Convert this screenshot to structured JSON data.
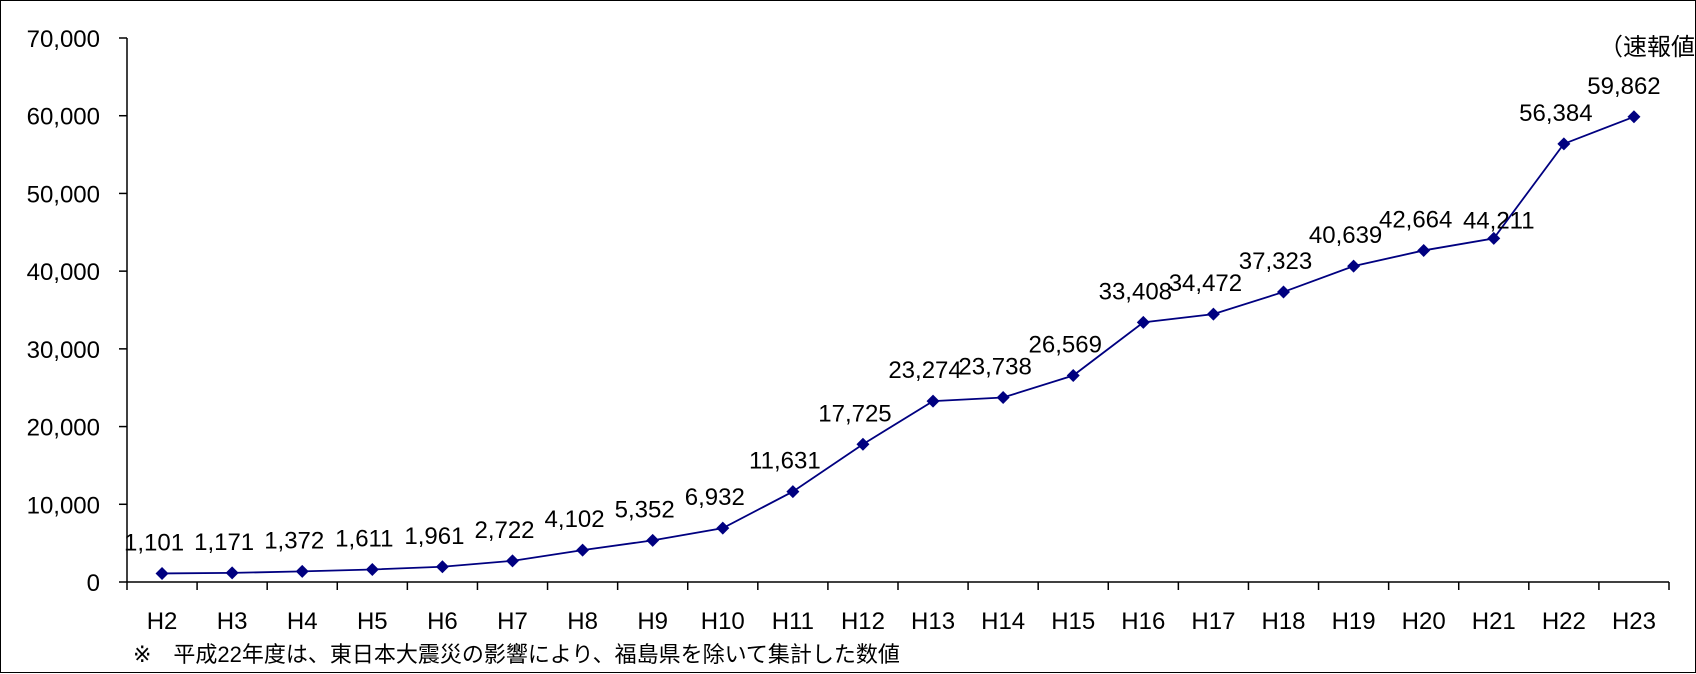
{
  "chart_data": {
    "type": "line",
    "categories": [
      "H2",
      "H3",
      "H4",
      "H5",
      "H6",
      "H7",
      "H8",
      "H9",
      "H10",
      "H11",
      "H12",
      "H13",
      "H14",
      "H15",
      "H16",
      "H17",
      "H18",
      "H19",
      "H20",
      "H21",
      "H22",
      "H23"
    ],
    "values": [
      1101,
      1171,
      1372,
      1611,
      1961,
      2722,
      4102,
      5352,
      6932,
      11631,
      17725,
      23274,
      23738,
      26569,
      33408,
      34472,
      37323,
      40639,
      42664,
      44211,
      56384,
      59862
    ],
    "data_labels": [
      "1,101",
      "1,171",
      "1,372",
      "1,611",
      "1,961",
      "2,722",
      "4,102",
      "5,352",
      "6,932",
      "11,631",
      "17,725",
      "23,274",
      "23,738",
      "26,569",
      "33,408",
      "34,472",
      "37,323",
      "40,639",
      "42,664",
      "44,211",
      "56,384",
      "59,862"
    ],
    "y_ticks": [
      0,
      10000,
      20000,
      30000,
      40000,
      50000,
      60000,
      70000
    ],
    "y_tick_labels": [
      "0",
      "10,000",
      "20,000",
      "30,000",
      "40,000",
      "50,000",
      "60,000",
      "70,000"
    ],
    "ylim": [
      0,
      70000
    ],
    "grid": false,
    "legend": "none",
    "annotation": "（速報値）",
    "note": "※　平成22年度は、東日本大震災の影響により、福島県を除いて集計した数値",
    "colors": {
      "line": "#000080",
      "marker": "#000080",
      "axis": "#000000"
    },
    "marker": "diamond"
  }
}
